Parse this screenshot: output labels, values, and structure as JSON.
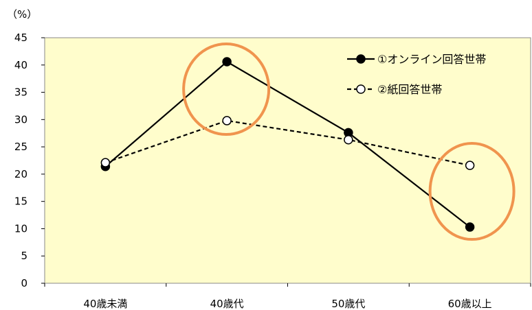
{
  "chart_data": {
    "type": "line",
    "unit_label": "（%）",
    "categories": [
      "40歳未満",
      "40歳代",
      "50歳代",
      "60歳以上"
    ],
    "ylim": [
      0,
      45
    ],
    "yticks": [
      0,
      5,
      10,
      15,
      20,
      25,
      30,
      35,
      40,
      45
    ],
    "grid": false,
    "legend_position": "top-right",
    "series": [
      {
        "name": "①オンライン回答世帯",
        "values": [
          21.4,
          40.6,
          27.6,
          10.3
        ],
        "line_style": "solid",
        "marker": "filled-circle",
        "color": "#000000"
      },
      {
        "name": "②紙回答世帯",
        "values": [
          22.1,
          29.8,
          26.3,
          21.6
        ],
        "line_style": "dashed",
        "marker": "open-circle",
        "color": "#000000"
      }
    ],
    "highlights": [
      {
        "category_index": 1,
        "color": "#F0944E"
      },
      {
        "category_index": 3,
        "color": "#F0944E"
      }
    ],
    "plot_background": "#FFFDCC"
  }
}
